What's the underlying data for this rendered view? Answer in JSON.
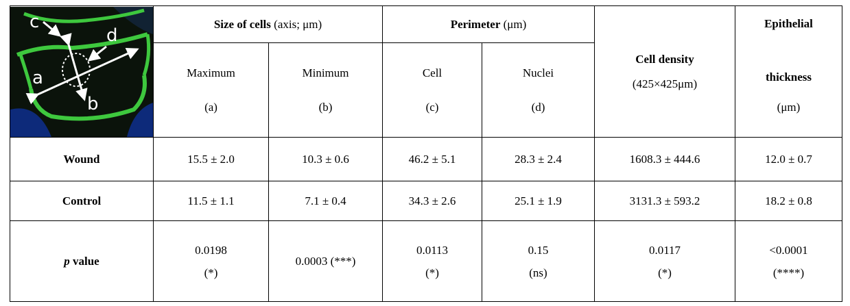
{
  "header": {
    "image_labels": [
      "c",
      "d",
      "a",
      "b"
    ],
    "size_of_cells": {
      "title": "Size of cells",
      "unit": "(axis; μm)"
    },
    "perimeter": {
      "title": "Perimeter",
      "unit": "(μm)"
    },
    "columns": [
      {
        "label": "Maximum",
        "sub": "(a)"
      },
      {
        "label": "Minimum",
        "sub": "(b)"
      },
      {
        "label": "Cell",
        "sub": "(c)"
      },
      {
        "label": "Nuclei",
        "sub": "(d)"
      }
    ],
    "cell_density": {
      "title": "Cell density",
      "unit": "(425×425μm)"
    },
    "epithelial_thickness": {
      "lines": [
        "Epithelial",
        "thickness"
      ],
      "unit": "(μm)"
    }
  },
  "table": {
    "rows": [
      {
        "label": "Wound",
        "cells": [
          [
            "15.5 ± 2.0"
          ],
          [
            "10.3 ± 0.6"
          ],
          [
            "46.2 ± 5.1"
          ],
          [
            "28.3 ± 2.4"
          ],
          [
            "1608.3 ± 444.6"
          ],
          [
            "12.0 ± 0.7"
          ]
        ]
      },
      {
        "label": "Control",
        "cells": [
          [
            "11.5 ± 1.1"
          ],
          [
            "7.1 ± 0.4"
          ],
          [
            "34.3 ± 2.6"
          ],
          [
            "25.1 ± 1.9"
          ],
          [
            "3131.3 ± 593.2"
          ],
          [
            "18.2 ± 0.8"
          ]
        ]
      },
      {
        "label_italic": "p",
        "label": "value",
        "cells": [
          [
            "0.0198",
            "(*)"
          ],
          [
            "0.0003 (***)"
          ],
          [
            "0.0113",
            "(*)"
          ],
          [
            "0.15",
            "(ns)"
          ],
          [
            "0.0117",
            "(*)"
          ],
          [
            "<0.0001",
            "(****)"
          ]
        ]
      }
    ]
  }
}
